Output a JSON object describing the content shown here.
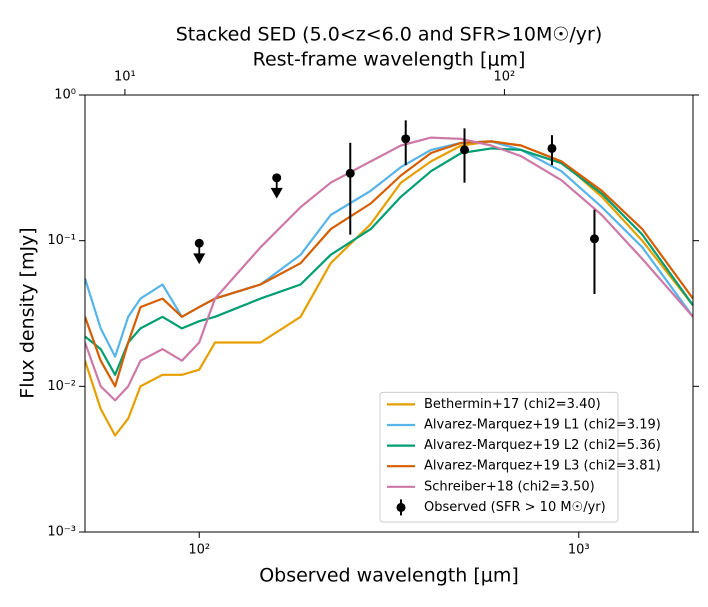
{
  "chart_data": {
    "type": "line",
    "title": "Stacked SED (5.0<z<6.0 and SFR>10M☉/yr)",
    "x2_label": "Rest-frame wavelength [μm]",
    "x_label": "Observed wavelength [μm]",
    "y_label": "Flux density [mJy]",
    "log_x": true,
    "log_y": true,
    "xlim": [
      50,
      2000
    ],
    "xticks": [
      {
        "value": 100,
        "label": "10²"
      },
      {
        "value": 1000,
        "label": "10³"
      }
    ],
    "x2lim": [
      7.85,
      314
    ],
    "x2ticks": [
      {
        "value": 10,
        "label": "10¹"
      },
      {
        "value": 100,
        "label": "10²"
      }
    ],
    "ylim": [
      0.001,
      1
    ],
    "yticks": [
      {
        "value": 0.001,
        "label": "10⁻³"
      },
      {
        "value": 0.01,
        "label": "10⁻²"
      },
      {
        "value": 0.1,
        "label": "10⁻¹"
      },
      {
        "value": 1,
        "label": "10⁰"
      }
    ],
    "legend": "lower right",
    "x": [
      50,
      55,
      60,
      65,
      70,
      80,
      90,
      100,
      110,
      145,
      185,
      222,
      283,
      340,
      408,
      490,
      588,
      705,
      900,
      1150,
      1470,
      2000
    ],
    "series": [
      {
        "name": "Bethermin+17 (chi2=3.40)",
        "color": "#e69f00",
        "values": [
          0.015,
          0.007,
          0.0046,
          0.006,
          0.01,
          0.012,
          0.012,
          0.013,
          0.02,
          0.02,
          0.03,
          0.07,
          0.13,
          0.25,
          0.35,
          0.45,
          0.48,
          0.45,
          0.35,
          0.2,
          0.1,
          0.036
        ]
      },
      {
        "name": "Alvarez-Marquez+19 L1 (chi2=3.19)",
        "color": "#56b4e9",
        "values": [
          0.055,
          0.025,
          0.016,
          0.03,
          0.04,
          0.05,
          0.03,
          0.035,
          0.04,
          0.05,
          0.08,
          0.15,
          0.22,
          0.32,
          0.42,
          0.47,
          0.48,
          0.42,
          0.3,
          0.17,
          0.09,
          0.03
        ]
      },
      {
        "name": "Alvarez-Marquez+19 L2 (chi2=5.36)",
        "color": "#009e73",
        "values": [
          0.022,
          0.018,
          0.012,
          0.02,
          0.025,
          0.03,
          0.025,
          0.028,
          0.03,
          0.04,
          0.05,
          0.08,
          0.12,
          0.2,
          0.3,
          0.4,
          0.43,
          0.42,
          0.34,
          0.21,
          0.11,
          0.036
        ]
      },
      {
        "name": "Alvarez-Marquez+19 L3 (chi2=3.81)",
        "color": "#d55e00",
        "values": [
          0.03,
          0.015,
          0.01,
          0.02,
          0.035,
          0.04,
          0.03,
          0.035,
          0.04,
          0.05,
          0.07,
          0.12,
          0.18,
          0.28,
          0.4,
          0.47,
          0.48,
          0.45,
          0.35,
          0.22,
          0.12,
          0.04
        ]
      },
      {
        "name": "Schreiber+18 (chi2=3.50)",
        "color": "#cc79a7",
        "values": [
          0.02,
          0.01,
          0.008,
          0.01,
          0.015,
          0.018,
          0.015,
          0.02,
          0.04,
          0.09,
          0.17,
          0.25,
          0.35,
          0.45,
          0.51,
          0.5,
          0.45,
          0.38,
          0.26,
          0.15,
          0.075,
          0.03
        ]
      }
    ],
    "observed": {
      "name": "Observed (SFR > 10 M☉/yr)",
      "color": "#000000",
      "x": [
        250,
        350,
        500,
        850,
        1100
      ],
      "values": [
        0.29,
        0.5,
        0.42,
        0.43,
        0.103
      ],
      "errors": [
        0.18,
        0.17,
        0.17,
        0.1,
        0.06
      ]
    },
    "upper_limits": {
      "color": "#000000",
      "x": [
        100,
        160
      ],
      "values": [
        0.096,
        0.27
      ]
    }
  }
}
